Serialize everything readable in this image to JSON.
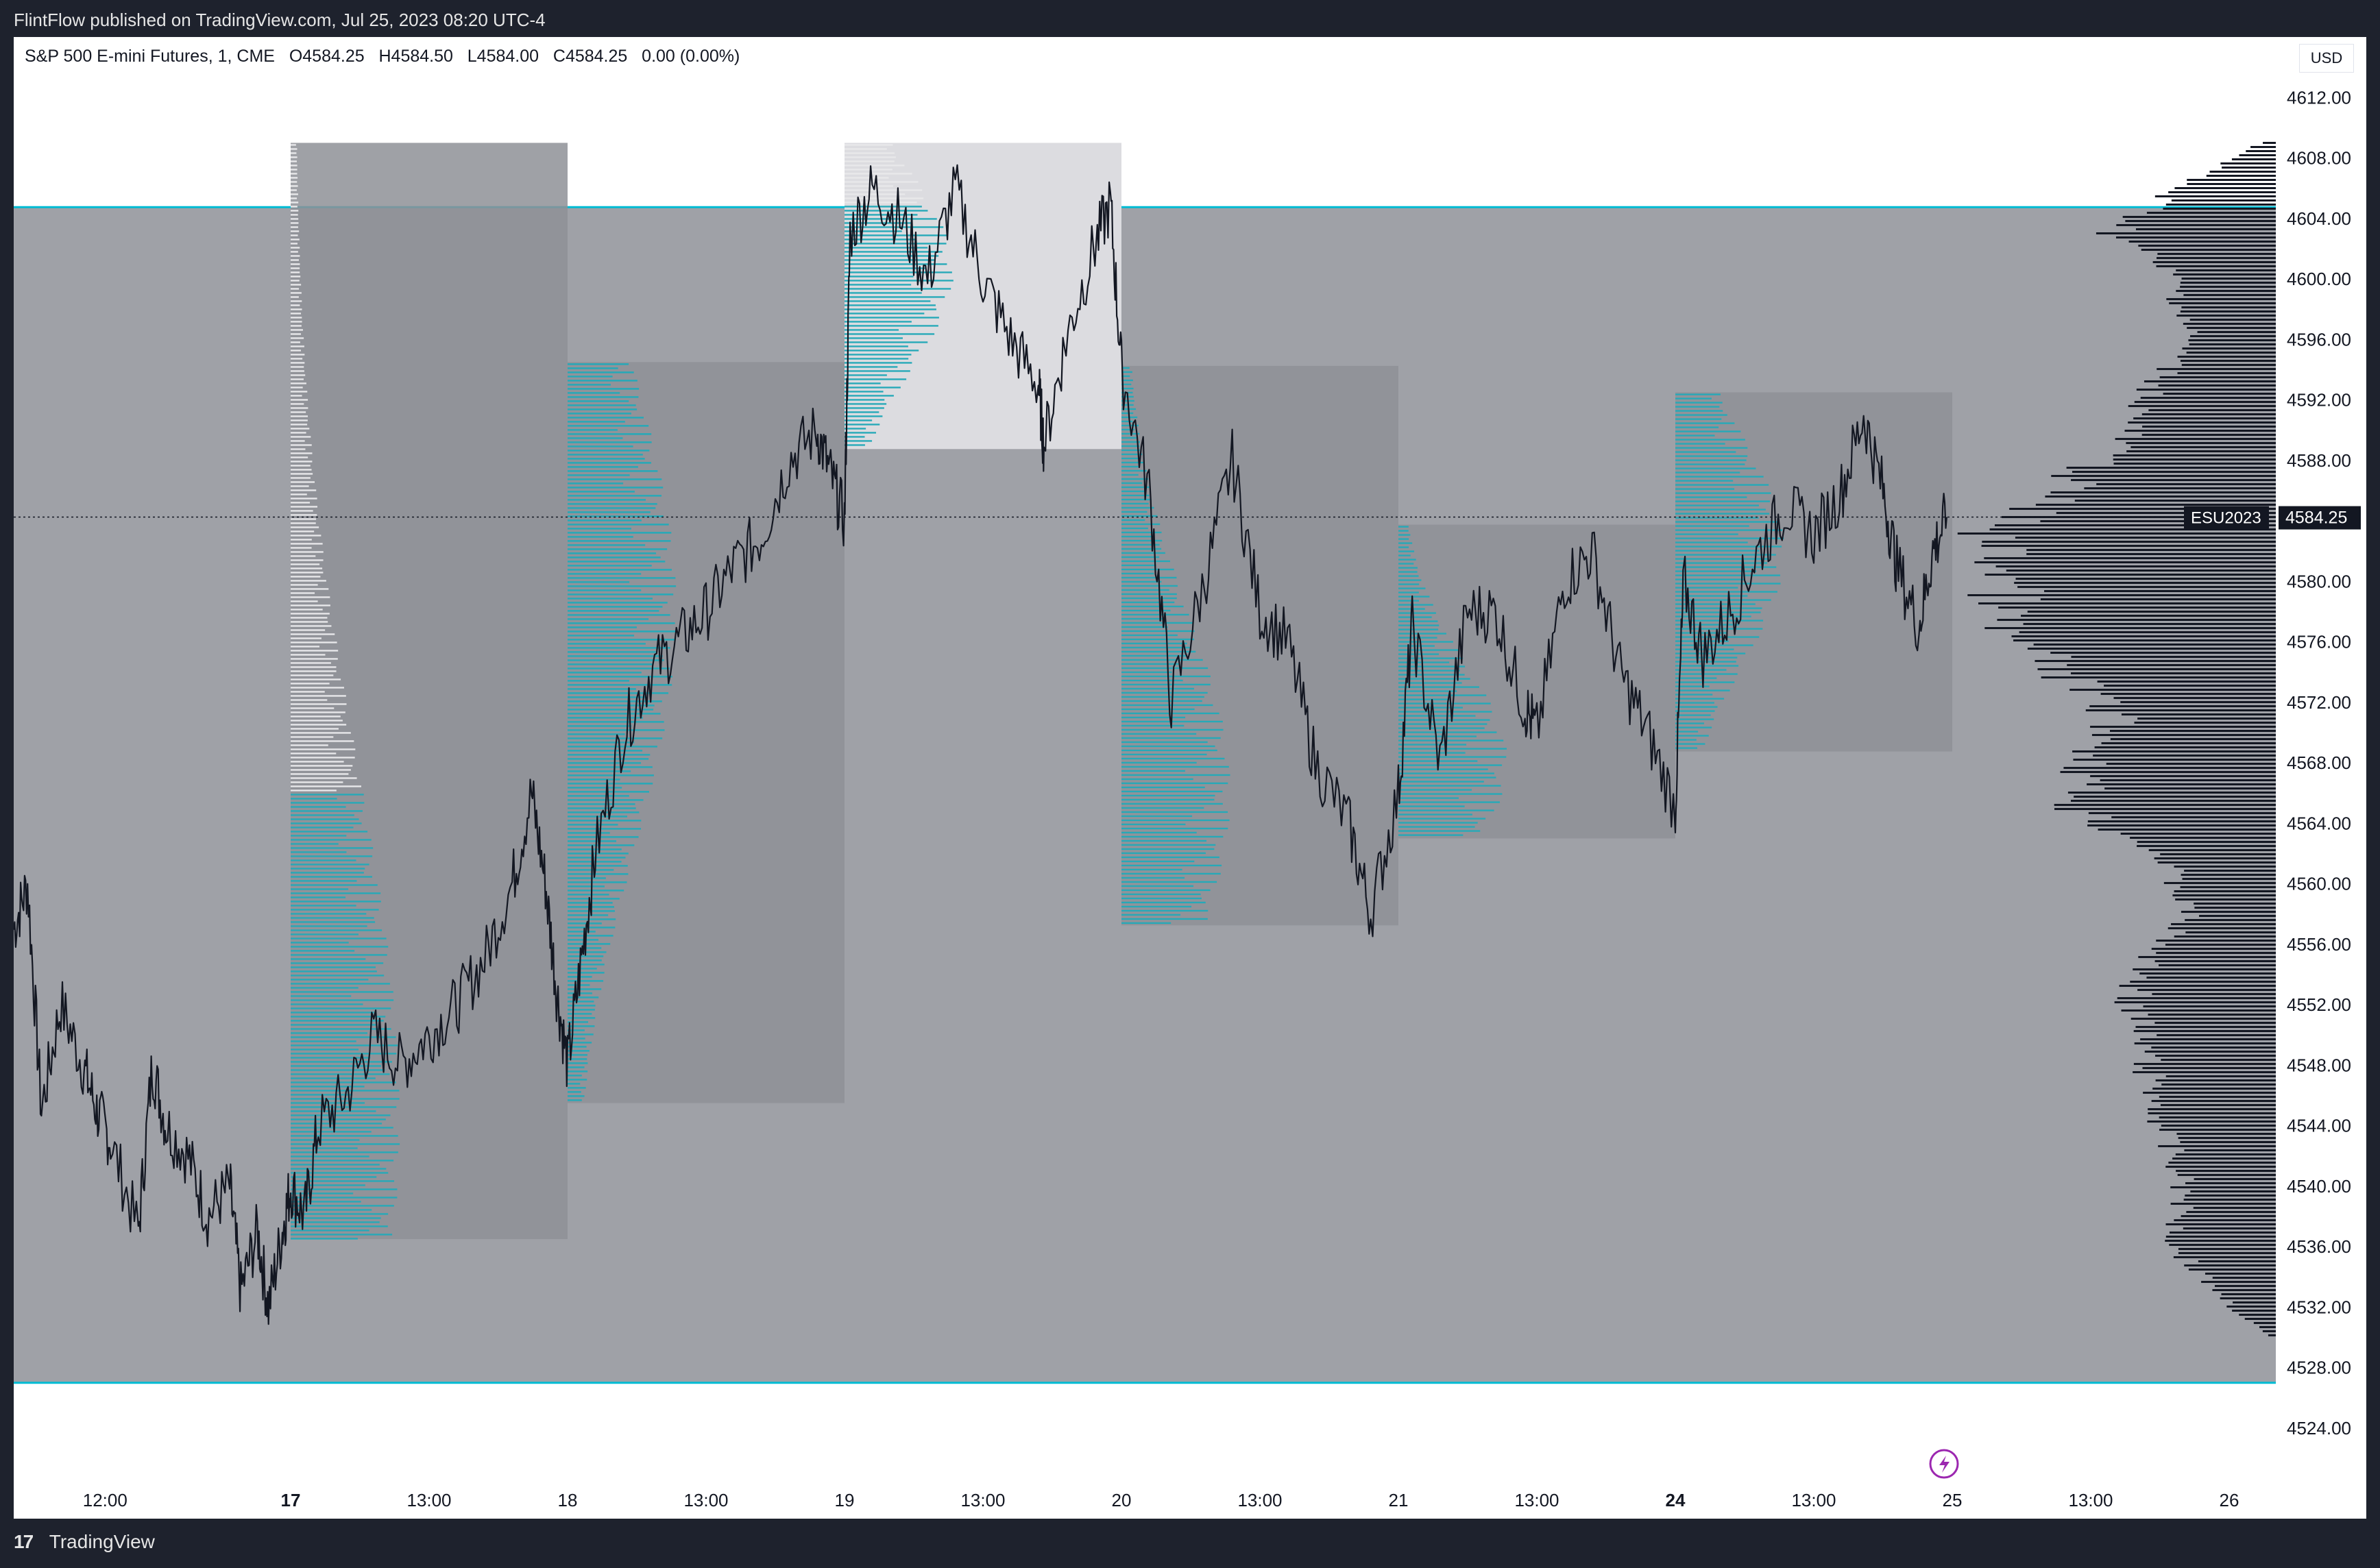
{
  "header": {
    "published": "FlintFlow published on TradingView.com, Jul 25, 2023 08:20 UTC-4"
  },
  "legend": {
    "symbol": "S&P 500 E-mini Futures, 1, CME",
    "open": "O4584.25",
    "high": "H4584.50",
    "low": "L4584.00",
    "close": "C4584.25",
    "change": "0.00 (0.00%)"
  },
  "currency": "USD",
  "footer": {
    "brand": "TradingView"
  },
  "colors": {
    "shade": "#9fa1a7",
    "box": "#8e9096",
    "box_light": "#dcdce0",
    "profile": "#26a9b8",
    "line": "#131722",
    "price_tag": "#131722",
    "session_line": "#00bcd4",
    "alert": "#9c27b0"
  },
  "icons": {
    "alert": "lightning-icon",
    "logo": "tradingview-logo-icon"
  },
  "chart_data": {
    "type": "line",
    "symbol": "ESU2023",
    "last_price": 4584.25,
    "last_price_label": "4584.25",
    "ylim": [
      4523,
      4616
    ],
    "y_ticks": [
      4612,
      4608,
      4604,
      4600,
      4596,
      4592,
      4588,
      4584,
      4580,
      4576,
      4572,
      4568,
      4564,
      4560,
      4556,
      4552,
      4548,
      4544,
      4540,
      4536,
      4532,
      4528,
      4524
    ],
    "y_tick_labels": [
      "4612.00",
      "4608.00",
      "4604.00",
      "4600.00",
      "4596.00",
      "4592.00",
      "4588.00",
      "4584.00",
      "4580.00",
      "4576.00",
      "4572.00",
      "4568.00",
      "4564.00",
      "4560.00",
      "4556.00",
      "4552.00",
      "4548.00",
      "4544.00",
      "4540.00",
      "4536.00",
      "4532.00",
      "4528.00",
      "4524.00"
    ],
    "x_ticks": [
      {
        "t": 0.33,
        "label": "12:00",
        "bold": false
      },
      {
        "t": 1.0,
        "label": "17",
        "bold": true
      },
      {
        "t": 1.5,
        "label": "13:00",
        "bold": false
      },
      {
        "t": 2.0,
        "label": "18",
        "bold": false
      },
      {
        "t": 2.5,
        "label": "13:00",
        "bold": false
      },
      {
        "t": 3.0,
        "label": "19",
        "bold": false
      },
      {
        "t": 3.5,
        "label": "13:00",
        "bold": false
      },
      {
        "t": 4.0,
        "label": "20",
        "bold": false
      },
      {
        "t": 4.5,
        "label": "13:00",
        "bold": false
      },
      {
        "t": 5.0,
        "label": "21",
        "bold": false
      },
      {
        "t": 5.5,
        "label": "13:00",
        "bold": false
      },
      {
        "t": 6.0,
        "label": "24",
        "bold": true
      },
      {
        "t": 6.5,
        "label": "13:00",
        "bold": false
      },
      {
        "t": 7.0,
        "label": "25",
        "bold": false
      },
      {
        "t": 7.5,
        "label": "13:00",
        "bold": false
      },
      {
        "t": 8.0,
        "label": "26",
        "bold": false
      }
    ],
    "range_band": {
      "top": 4604.75,
      "bottom": 4527.0
    },
    "sessions": [
      {
        "start": 1.0,
        "end": 2.0,
        "high": 4609.0,
        "low": 4536.5,
        "vah": 4566.0,
        "poc": 4544.5,
        "color": "dark"
      },
      {
        "start": 2.0,
        "end": 3.0,
        "high": 4594.5,
        "low": 4545.5,
        "vah": 4594.5,
        "poc": 4578.0,
        "color": "dark"
      },
      {
        "start": 3.0,
        "end": 4.0,
        "high": 4609.0,
        "low": 4588.75,
        "vah": 4605.0,
        "poc": 4600.5,
        "color": "light"
      },
      {
        "start": 4.0,
        "end": 5.0,
        "high": 4594.25,
        "low": 4557.25,
        "vah": 4594.25,
        "poc": 4566.0,
        "color": "dark"
      },
      {
        "start": 5.0,
        "end": 6.0,
        "high": 4583.75,
        "low": 4563.0,
        "vah": 4583.75,
        "poc": 4568.0,
        "color": "dark"
      },
      {
        "start": 6.0,
        "end": 7.0,
        "high": 4592.5,
        "low": 4568.75,
        "vah": 4592.5,
        "poc": 4582.0,
        "color": "dark"
      }
    ],
    "price_series": [
      {
        "t": 0.0,
        "p": 4557.0
      },
      {
        "t": 0.05,
        "p": 4560.0
      },
      {
        "t": 0.1,
        "p": 4545.0
      },
      {
        "t": 0.17,
        "p": 4552.0
      },
      {
        "t": 0.25,
        "p": 4548.0
      },
      {
        "t": 0.3,
        "p": 4545.0
      },
      {
        "t": 0.35,
        "p": 4543.0
      },
      {
        "t": 0.45,
        "p": 4537.0
      },
      {
        "t": 0.5,
        "p": 4548.0
      },
      {
        "t": 0.55,
        "p": 4544.0
      },
      {
        "t": 0.63,
        "p": 4542.0
      },
      {
        "t": 0.7,
        "p": 4538.0
      },
      {
        "t": 0.78,
        "p": 4540.0
      },
      {
        "t": 0.82,
        "p": 4533.0
      },
      {
        "t": 0.88,
        "p": 4537.0
      },
      {
        "t": 0.92,
        "p": 4532.0
      },
      {
        "t": 0.97,
        "p": 4537.0
      },
      {
        "t": 1.0,
        "p": 4540.0
      },
      {
        "t": 1.05,
        "p": 4538.0
      },
      {
        "t": 1.1,
        "p": 4544.0
      },
      {
        "t": 1.2,
        "p": 4546.0
      },
      {
        "t": 1.3,
        "p": 4550.0
      },
      {
        "t": 1.4,
        "p": 4548.0
      },
      {
        "t": 1.5,
        "p": 4550.0
      },
      {
        "t": 1.6,
        "p": 4552.0
      },
      {
        "t": 1.7,
        "p": 4555.0
      },
      {
        "t": 1.8,
        "p": 4560.0
      },
      {
        "t": 1.87,
        "p": 4566.0
      },
      {
        "t": 1.92,
        "p": 4560.0
      },
      {
        "t": 1.96,
        "p": 4553.0
      },
      {
        "t": 2.0,
        "p": 4548.0
      },
      {
        "t": 2.05,
        "p": 4555.0
      },
      {
        "t": 2.1,
        "p": 4562.0
      },
      {
        "t": 2.2,
        "p": 4570.0
      },
      {
        "t": 2.3,
        "p": 4574.0
      },
      {
        "t": 2.4,
        "p": 4576.0
      },
      {
        "t": 2.5,
        "p": 4578.0
      },
      {
        "t": 2.6,
        "p": 4581.0
      },
      {
        "t": 2.7,
        "p": 4583.0
      },
      {
        "t": 2.8,
        "p": 4588.0
      },
      {
        "t": 2.9,
        "p": 4590.0
      },
      {
        "t": 2.95,
        "p": 4587.0
      },
      {
        "t": 3.0,
        "p": 4584.0
      },
      {
        "t": 3.02,
        "p": 4603.0
      },
      {
        "t": 3.1,
        "p": 4606.0
      },
      {
        "t": 3.2,
        "p": 4604.0
      },
      {
        "t": 3.3,
        "p": 4600.0
      },
      {
        "t": 3.4,
        "p": 4606.0
      },
      {
        "t": 3.5,
        "p": 4600.0
      },
      {
        "t": 3.6,
        "p": 4596.0
      },
      {
        "t": 3.7,
        "p": 4593.0
      },
      {
        "t": 3.72,
        "p": 4589.0
      },
      {
        "t": 3.8,
        "p": 4596.0
      },
      {
        "t": 3.9,
        "p": 4602.0
      },
      {
        "t": 3.96,
        "p": 4605.0
      },
      {
        "t": 4.0,
        "p": 4594.0
      },
      {
        "t": 4.1,
        "p": 4586.0
      },
      {
        "t": 4.18,
        "p": 4572.0
      },
      {
        "t": 4.3,
        "p": 4580.0
      },
      {
        "t": 4.4,
        "p": 4588.0
      },
      {
        "t": 4.5,
        "p": 4578.0
      },
      {
        "t": 4.6,
        "p": 4576.0
      },
      {
        "t": 4.7,
        "p": 4568.0
      },
      {
        "t": 4.82,
        "p": 4564.0
      },
      {
        "t": 4.9,
        "p": 4558.0
      },
      {
        "t": 5.0,
        "p": 4566.0
      },
      {
        "t": 5.05,
        "p": 4577.0
      },
      {
        "t": 5.15,
        "p": 4568.0
      },
      {
        "t": 5.25,
        "p": 4578.0
      },
      {
        "t": 5.35,
        "p": 4578.0
      },
      {
        "t": 5.45,
        "p": 4572.0
      },
      {
        "t": 5.5,
        "p": 4570.0
      },
      {
        "t": 5.6,
        "p": 4580.0
      },
      {
        "t": 5.7,
        "p": 4582.0
      },
      {
        "t": 5.8,
        "p": 4574.0
      },
      {
        "t": 5.9,
        "p": 4570.0
      },
      {
        "t": 6.0,
        "p": 4565.0
      },
      {
        "t": 6.03,
        "p": 4580.0
      },
      {
        "t": 6.1,
        "p": 4575.0
      },
      {
        "t": 6.2,
        "p": 4578.0
      },
      {
        "t": 6.3,
        "p": 4582.0
      },
      {
        "t": 6.4,
        "p": 4585.0
      },
      {
        "t": 6.5,
        "p": 4583.0
      },
      {
        "t": 6.6,
        "p": 4586.0
      },
      {
        "t": 6.68,
        "p": 4591.0
      },
      {
        "t": 6.75,
        "p": 4586.0
      },
      {
        "t": 6.8,
        "p": 4581.0
      },
      {
        "t": 6.88,
        "p": 4577.0
      },
      {
        "t": 6.93,
        "p": 4582.0
      },
      {
        "t": 6.98,
        "p": 4584.25
      }
    ],
    "composite_profile": [
      {
        "p": 4609,
        "v": 0.05
      },
      {
        "p": 4606,
        "v": 0.35
      },
      {
        "p": 4603,
        "v": 0.55
      },
      {
        "p": 4600,
        "v": 0.35
      },
      {
        "p": 4596,
        "v": 0.3
      },
      {
        "p": 4592,
        "v": 0.45
      },
      {
        "p": 4589,
        "v": 0.55
      },
      {
        "p": 4586,
        "v": 0.75
      },
      {
        "p": 4583,
        "v": 1.0
      },
      {
        "p": 4580,
        "v": 0.92
      },
      {
        "p": 4577,
        "v": 0.98
      },
      {
        "p": 4574,
        "v": 0.75
      },
      {
        "p": 4571,
        "v": 0.55
      },
      {
        "p": 4568,
        "v": 0.65
      },
      {
        "p": 4565,
        "v": 0.7
      },
      {
        "p": 4562,
        "v": 0.4
      },
      {
        "p": 4558,
        "v": 0.3
      },
      {
        "p": 4555,
        "v": 0.45
      },
      {
        "p": 4552,
        "v": 0.5
      },
      {
        "p": 4548,
        "v": 0.45
      },
      {
        "p": 4544,
        "v": 0.4
      },
      {
        "p": 4540,
        "v": 0.32
      },
      {
        "p": 4536,
        "v": 0.35
      },
      {
        "p": 4532,
        "v": 0.15
      },
      {
        "p": 4530,
        "v": 0.02
      }
    ]
  }
}
